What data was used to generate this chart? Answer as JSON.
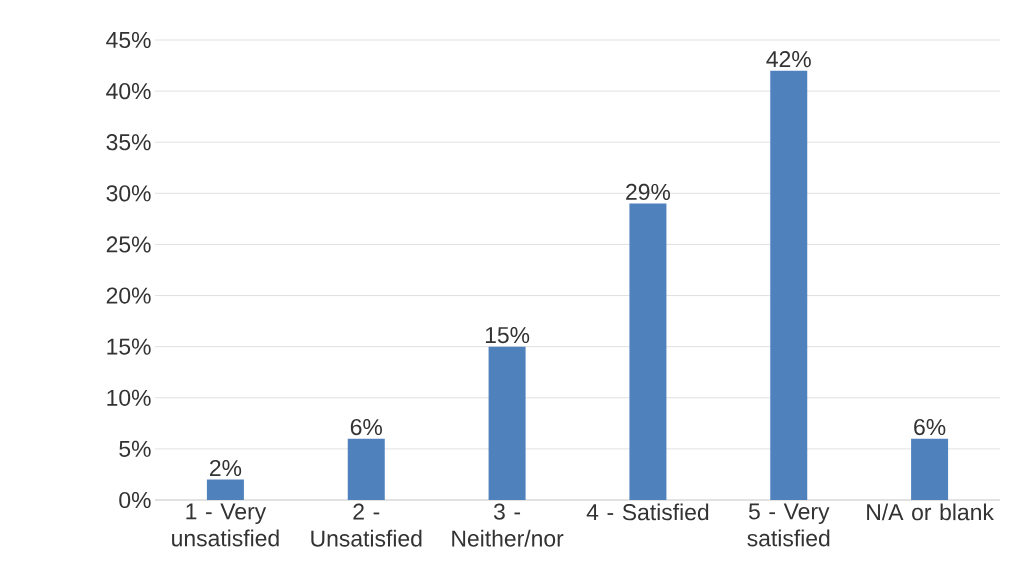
{
  "chart_data": {
    "type": "bar",
    "categories": [
      "1 - Very unsatisfied",
      "2 - Unsatisfied",
      "3 - Neither/nor",
      "4 - Satisfied",
      "5 - Very satisfied",
      "N/A or blank"
    ],
    "values": [
      2,
      6,
      15,
      29,
      42,
      6
    ],
    "value_labels": [
      "2%",
      "6%",
      "15%",
      "29%",
      "42%",
      "6%"
    ],
    "color": "#4f81bd",
    "ylim": [
      0,
      45
    ],
    "yticks": [
      {
        "value": 0,
        "label": "0%"
      },
      {
        "value": 5,
        "label": "5%"
      },
      {
        "value": 10,
        "label": "10%"
      },
      {
        "value": 15,
        "label": "15%"
      },
      {
        "value": 20,
        "label": "20%"
      },
      {
        "value": 25,
        "label": "25%"
      },
      {
        "value": 30,
        "label": "30%"
      },
      {
        "value": 35,
        "label": "35%"
      },
      {
        "value": 40,
        "label": "40%"
      },
      {
        "value": 45,
        "label": "45%"
      }
    ],
    "grid": "y"
  }
}
